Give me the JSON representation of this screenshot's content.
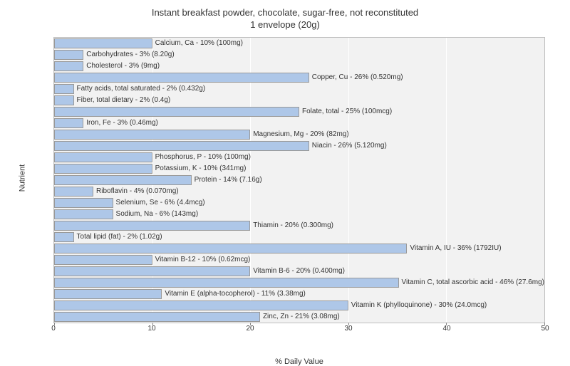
{
  "chart": {
    "type": "bar-horizontal",
    "title_line1": "Instant breakfast powder, chocolate, sugar-free, not reconstituted",
    "title_line2": "1 envelope (20g)",
    "title_fontsize": 13,
    "ylabel": "Nutrient",
    "xlabel": "% Daily Value",
    "label_fontsize": 11,
    "xlim": [
      0,
      50
    ],
    "xtick_step": 10,
    "xticks": [
      0,
      10,
      20,
      30,
      40,
      50
    ],
    "bar_color": "#aec7e8",
    "bar_border_color": "#999999",
    "background_color": "#f2f2f2",
    "grid_color": "#ffffff",
    "border_color": "#bfbfbf",
    "bar_label_fontsize": 10,
    "nutrients": [
      {
        "value": 10,
        "label": "Calcium, Ca - 10% (100mg)"
      },
      {
        "value": 3,
        "label": "Carbohydrates - 3% (8.20g)"
      },
      {
        "value": 3,
        "label": "Cholesterol - 3% (9mg)"
      },
      {
        "value": 26,
        "label": "Copper, Cu - 26% (0.520mg)"
      },
      {
        "value": 2,
        "label": "Fatty acids, total saturated - 2% (0.432g)"
      },
      {
        "value": 2,
        "label": "Fiber, total dietary - 2% (0.4g)"
      },
      {
        "value": 25,
        "label": "Folate, total - 25% (100mcg)"
      },
      {
        "value": 3,
        "label": "Iron, Fe - 3% (0.46mg)"
      },
      {
        "value": 20,
        "label": "Magnesium, Mg - 20% (82mg)"
      },
      {
        "value": 26,
        "label": "Niacin - 26% (5.120mg)"
      },
      {
        "value": 10,
        "label": "Phosphorus, P - 10% (100mg)"
      },
      {
        "value": 10,
        "label": "Potassium, K - 10% (341mg)"
      },
      {
        "value": 14,
        "label": "Protein - 14% (7.16g)"
      },
      {
        "value": 4,
        "label": "Riboflavin - 4% (0.070mg)"
      },
      {
        "value": 6,
        "label": "Selenium, Se - 6% (4.4mcg)"
      },
      {
        "value": 6,
        "label": "Sodium, Na - 6% (143mg)"
      },
      {
        "value": 20,
        "label": "Thiamin - 20% (0.300mg)"
      },
      {
        "value": 2,
        "label": "Total lipid (fat) - 2% (1.02g)"
      },
      {
        "value": 36,
        "label": "Vitamin A, IU - 36% (1792IU)"
      },
      {
        "value": 10,
        "label": "Vitamin B-12 - 10% (0.62mcg)"
      },
      {
        "value": 20,
        "label": "Vitamin B-6 - 20% (0.400mg)"
      },
      {
        "value": 46,
        "label": "Vitamin C, total ascorbic acid - 46% (27.6mg)"
      },
      {
        "value": 11,
        "label": "Vitamin E (alpha-tocopherol) - 11% (3.38mg)"
      },
      {
        "value": 30,
        "label": "Vitamin K (phylloquinone) - 30% (24.0mcg)"
      },
      {
        "value": 21,
        "label": "Zinc, Zn - 21% (3.08mg)"
      }
    ]
  }
}
